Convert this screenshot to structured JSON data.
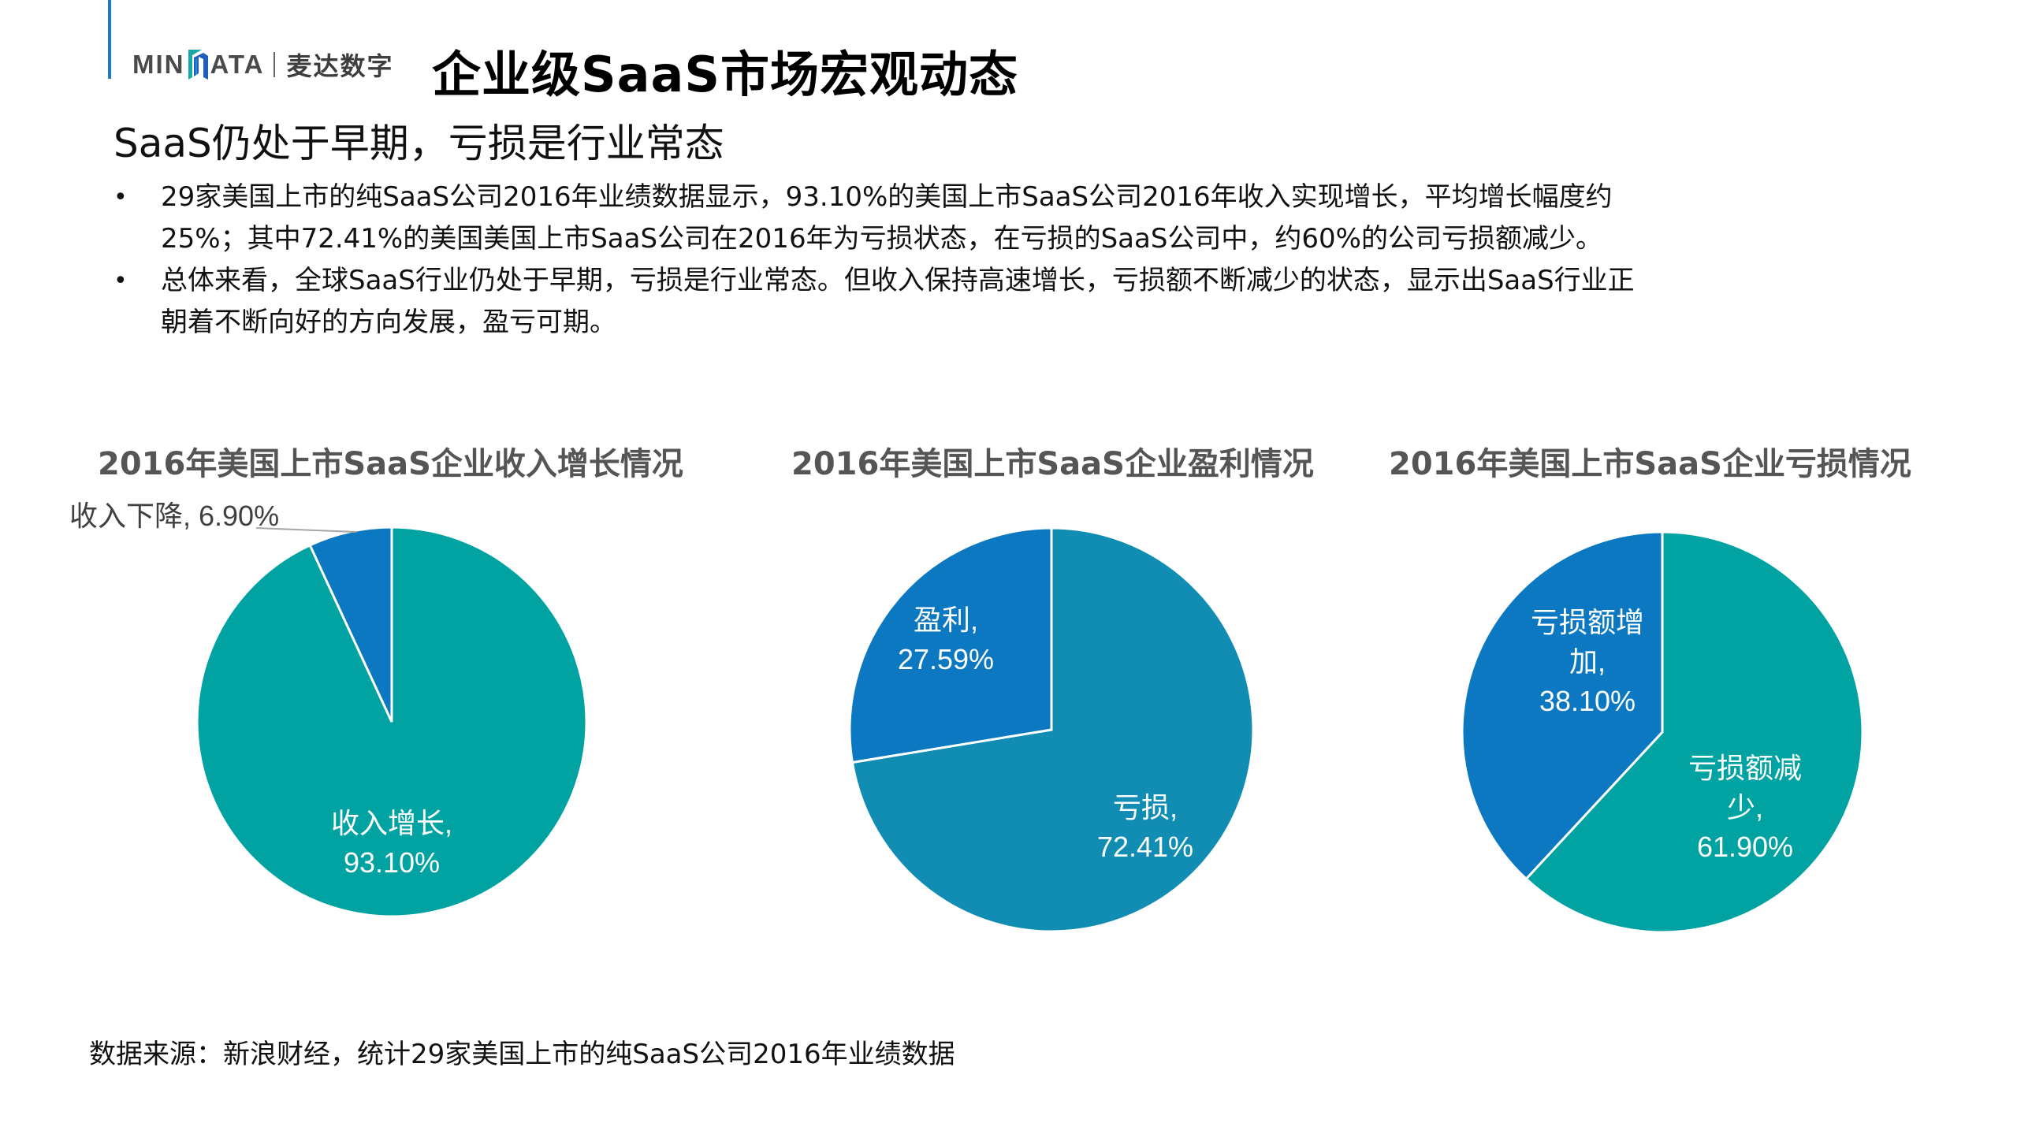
{
  "header": {
    "logo_en_left": "MIN",
    "logo_en_right": "ATA",
    "logo_cn": "麦达数字",
    "title": "企业级SaaS市场宏观动态",
    "accent_color": "#1a7cc4"
  },
  "subtitle": "SaaS仍处于早期，亏损是行业常态",
  "bullets": [
    {
      "line1": "29家美国上市的纯SaaS公司2016年业绩数据显示，93.10%的美国上市SaaS公司2016年收入实现增长，平均增长幅度约",
      "line2": "25%；其中72.41%的美国美国上市SaaS公司在2016年为亏损状态，在亏损的SaaS公司中，约60%的公司亏损额减少。"
    },
    {
      "line1": "总体来看，全球SaaS行业仍处于早期，亏损是行业常态。但收入保持高速增长，亏损额不断减少的状态，显示出SaaS行业正",
      "line2": "朝着不断向好的方向发展，盈亏可期。"
    }
  ],
  "bullet_glyph": "•",
  "footer": "数据来源：新浪财经，统计29家美国上市的纯SaaS公司2016年业绩数据",
  "chart_data": [
    {
      "type": "pie",
      "title": "2016年美国上市SaaS企业收入增长情况",
      "categories": [
        "收入增长",
        "收入下降"
      ],
      "values": [
        93.1,
        6.9
      ],
      "colors": [
        "#00a3a1",
        "#0b78c1"
      ],
      "labels": [
        {
          "name": "收入增长,",
          "value": "93.10%"
        },
        {
          "name": "收入下降,",
          "value": "6.90%",
          "full": "收入下降, 6.90%"
        }
      ],
      "unit": "%"
    },
    {
      "type": "pie",
      "title": "2016年美国上市SaaS企业盈利情况",
      "categories": [
        "亏损",
        "盈利"
      ],
      "values": [
        72.41,
        27.59
      ],
      "colors": [
        "#118db4",
        "#0b78c1"
      ],
      "labels": [
        {
          "name": "亏损,",
          "value": "72.41%"
        },
        {
          "name": "盈利,",
          "value": "27.59%"
        }
      ],
      "unit": "%"
    },
    {
      "type": "pie",
      "title": "2016年美国上市SaaS企业亏损情况",
      "categories": [
        "亏损额减少",
        "亏损额增加"
      ],
      "values": [
        61.9,
        38.1
      ],
      "colors": [
        "#00a3a1",
        "#0b78c1"
      ],
      "labels": [
        {
          "name_l1": "亏损额减",
          "name_l2": "少,",
          "value": "61.90%"
        },
        {
          "name_l1": "亏损额增",
          "name_l2": "加,",
          "value": "38.10%"
        }
      ],
      "unit": "%"
    }
  ]
}
